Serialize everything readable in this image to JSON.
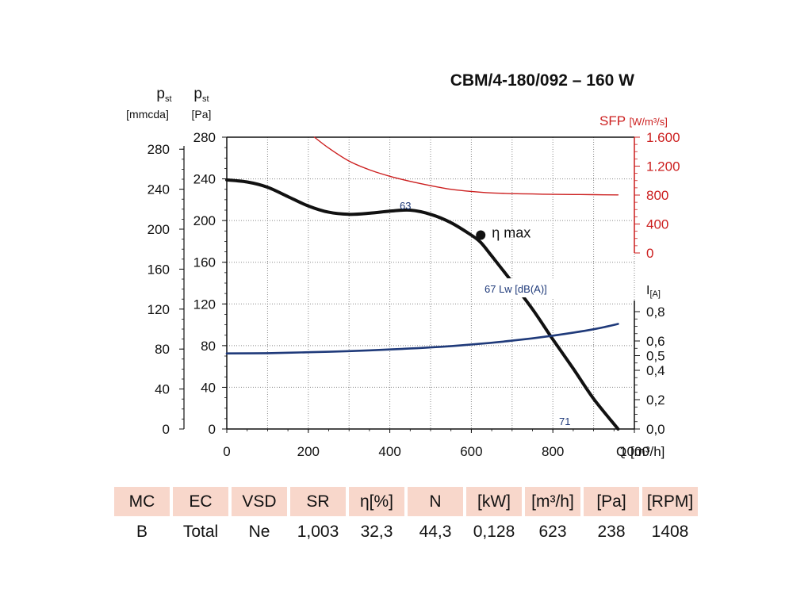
{
  "chart_data": {
    "type": "line",
    "title": "CBM/4-180/092 – 160 W",
    "xlabel": "Q [m³/h]",
    "x_axis": {
      "range": [
        0,
        1000
      ],
      "ticks": [
        "0",
        "200",
        "400",
        "600",
        "800",
        "1000"
      ]
    },
    "y_left_pa": {
      "label": "p",
      "label_sub": "st",
      "unit": "[Pa]",
      "range": [
        0,
        280
      ],
      "ticks": [
        "0",
        "40",
        "80",
        "120",
        "160",
        "200",
        "240",
        "280"
      ]
    },
    "y_left_mmcda": {
      "label": "p",
      "label_sub": "st",
      "unit": "[mmcda]",
      "ticks": [
        "0",
        "40",
        "80",
        "120",
        "160",
        "200",
        "240",
        "280"
      ]
    },
    "y_right_sfp": {
      "label": "SFP",
      "unit": "[W/m³/s]",
      "range": [
        0,
        1600
      ],
      "ticks": [
        "0",
        "400",
        "800",
        "1.200",
        "1.600"
      ]
    },
    "y_right_current": {
      "label": "I",
      "unit": "[A]",
      "range": [
        0,
        0.8
      ],
      "ticks": [
        "0,0",
        "0,2",
        "0,4",
        "0,5",
        "0,6",
        "0,8"
      ]
    },
    "series": [
      {
        "name": "pst",
        "axis": "pa",
        "color": "#111111",
        "x": [
          0,
          50,
          100,
          150,
          200,
          250,
          300,
          350,
          400,
          450,
          500,
          550,
          600,
          623,
          650,
          700,
          750,
          800,
          850,
          900,
          960
        ],
        "y": [
          239,
          237,
          232,
          223,
          214,
          208,
          206,
          207,
          209,
          210,
          206,
          198,
          186,
          179,
          166,
          141,
          115,
          86,
          58,
          29,
          0
        ]
      },
      {
        "name": "SFP",
        "axis": "sfp",
        "color": "#cc1f1f",
        "x": [
          215,
          250,
          300,
          350,
          400,
          450,
          500,
          550,
          600,
          650,
          700,
          750,
          800,
          850,
          900,
          960
        ],
        "y": [
          1600,
          1450,
          1270,
          1150,
          1060,
          990,
          930,
          880,
          850,
          830,
          820,
          815,
          810,
          808,
          805,
          802
        ]
      },
      {
        "name": "I",
        "axis": "current",
        "color": "#1f3a7a",
        "x": [
          0,
          100,
          200,
          300,
          400,
          500,
          600,
          700,
          800,
          900,
          960
        ],
        "y": [
          0.515,
          0.517,
          0.523,
          0.531,
          0.542,
          0.556,
          0.576,
          0.602,
          0.636,
          0.68,
          0.716
        ]
      }
    ],
    "annotations": [
      {
        "text": "η max",
        "x": 623,
        "y": 186
      },
      {
        "text": "63"
      },
      {
        "text": "67 Lw [dB(A)]"
      },
      {
        "text": "71"
      }
    ],
    "colors": {
      "black": "#111111",
      "sfp": "#cc1f1f",
      "current": "#1f3a7a",
      "grid": "#888888"
    }
  },
  "table": {
    "headers": [
      "MC",
      "EC",
      "VSD",
      "SR",
      "η[%]",
      "N",
      "[kW]",
      "[m³/h]",
      "[Pa]",
      "[RPM]"
    ],
    "values": [
      "B",
      "Total",
      "Ne",
      "1,003",
      "32,3",
      "44,3",
      "0,128",
      "623",
      "238",
      "1408"
    ],
    "header_bg": "#f8d7cb"
  }
}
